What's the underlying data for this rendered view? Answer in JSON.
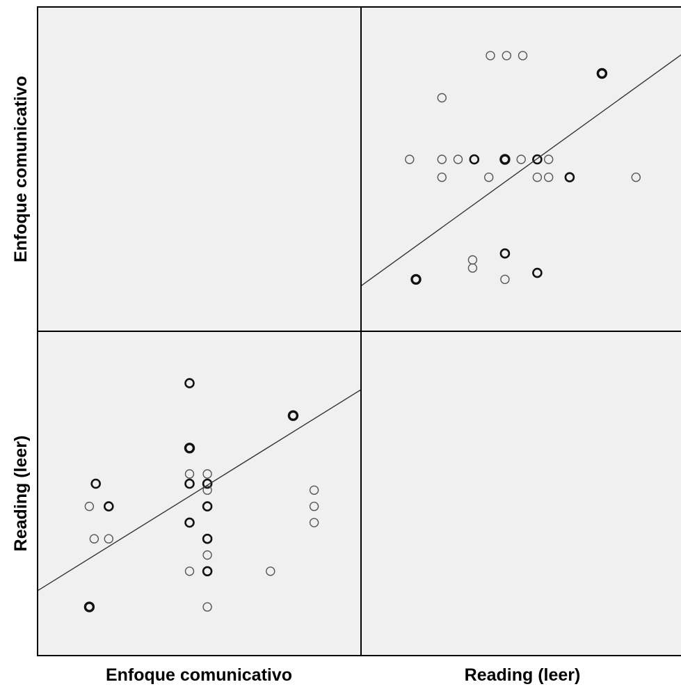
{
  "chart_data": {
    "type": "scatter",
    "variables": [
      "Enfoque comunicativo",
      "Reading (leer)"
    ],
    "x_labels": [
      "Enfoque comunicativo",
      "Reading (leer)"
    ],
    "y_labels": [
      "Enfoque comunicativo",
      "Reading (leer)"
    ],
    "grid": false,
    "panel_background": "#f0f0f0",
    "marker_color": "#3a3a3a",
    "line_color": "#333333",
    "panels": [
      {
        "row": 1,
        "col": 0,
        "x_var": "Enfoque comunicativo",
        "y_var": "Reading (leer)",
        "xlim": [
          0,
          100
        ],
        "ylim": [
          0,
          100
        ],
        "fit_line": {
          "x": [
            0,
            100
          ],
          "y": [
            20,
            82
          ]
        },
        "points": [
          {
            "x": 16,
            "y": 15,
            "w": 3
          },
          {
            "x": 18,
            "y": 53,
            "w": 2
          },
          {
            "x": 16,
            "y": 46,
            "w": 1
          },
          {
            "x": 22,
            "y": 46,
            "w": 2
          },
          {
            "x": 17.5,
            "y": 36,
            "w": 1
          },
          {
            "x": 22,
            "y": 36,
            "w": 1
          },
          {
            "x": 47,
            "y": 84,
            "w": 2
          },
          {
            "x": 47,
            "y": 64,
            "w": 3
          },
          {
            "x": 47,
            "y": 56,
            "w": 1
          },
          {
            "x": 47,
            "y": 53,
            "w": 2
          },
          {
            "x": 47,
            "y": 41,
            "w": 2
          },
          {
            "x": 47,
            "y": 26,
            "w": 1
          },
          {
            "x": 52.5,
            "y": 56,
            "w": 1
          },
          {
            "x": 52.5,
            "y": 53,
            "w": 2
          },
          {
            "x": 52.5,
            "y": 51,
            "w": 1
          },
          {
            "x": 52.5,
            "y": 46,
            "w": 2
          },
          {
            "x": 52.5,
            "y": 36,
            "w": 2
          },
          {
            "x": 52.5,
            "y": 31,
            "w": 1
          },
          {
            "x": 52.5,
            "y": 26,
            "w": 2
          },
          {
            "x": 52.5,
            "y": 15,
            "w": 1
          },
          {
            "x": 72,
            "y": 26,
            "w": 1
          },
          {
            "x": 79,
            "y": 74,
            "w": 3
          },
          {
            "x": 85.5,
            "y": 51,
            "w": 1
          },
          {
            "x": 85.5,
            "y": 46,
            "w": 1
          },
          {
            "x": 85.5,
            "y": 41,
            "w": 1
          }
        ]
      },
      {
        "row": 0,
        "col": 1,
        "x_var": "Reading (leer)",
        "y_var": "Enfoque comunicativo",
        "xlim": [
          0,
          100
        ],
        "ylim": [
          0,
          100
        ],
        "fit_line": {
          "x": [
            0,
            100
          ],
          "y": [
            14,
            86
          ]
        },
        "points": [
          {
            "x": 17,
            "y": 16,
            "w": 3
          },
          {
            "x": 34.5,
            "y": 19.5,
            "w": 1
          },
          {
            "x": 34.5,
            "y": 22,
            "w": 1
          },
          {
            "x": 44.5,
            "y": 16,
            "w": 1
          },
          {
            "x": 44.5,
            "y": 24,
            "w": 2
          },
          {
            "x": 54.5,
            "y": 18,
            "w": 2
          },
          {
            "x": 15,
            "y": 53,
            "w": 1
          },
          {
            "x": 25,
            "y": 53,
            "w": 1
          },
          {
            "x": 25,
            "y": 47.5,
            "w": 1
          },
          {
            "x": 30,
            "y": 53,
            "w": 1
          },
          {
            "x": 35,
            "y": 53,
            "w": 2
          },
          {
            "x": 39.5,
            "y": 47.5,
            "w": 1
          },
          {
            "x": 44.5,
            "y": 53,
            "w": 3
          },
          {
            "x": 49.5,
            "y": 53,
            "w": 1
          },
          {
            "x": 54.5,
            "y": 53,
            "w": 2
          },
          {
            "x": 58,
            "y": 53,
            "w": 1
          },
          {
            "x": 54.5,
            "y": 47.5,
            "w": 1
          },
          {
            "x": 58,
            "y": 47.5,
            "w": 1
          },
          {
            "x": 64.5,
            "y": 47.5,
            "w": 2
          },
          {
            "x": 85,
            "y": 47.5,
            "w": 1
          },
          {
            "x": 25,
            "y": 72,
            "w": 1
          },
          {
            "x": 40,
            "y": 85,
            "w": 1
          },
          {
            "x": 45,
            "y": 85,
            "w": 1
          },
          {
            "x": 50,
            "y": 85,
            "w": 1
          },
          {
            "x": 74.5,
            "y": 79.5,
            "w": 3
          }
        ]
      }
    ]
  }
}
